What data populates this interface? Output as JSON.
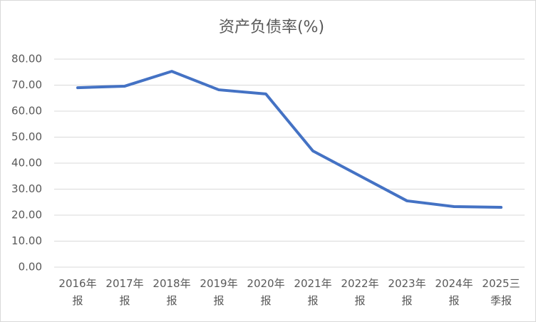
{
  "chart_data": {
    "type": "line",
    "title": "资产负债率(%)",
    "categories": [
      "2016年报",
      "2017年报",
      "2018年报",
      "2019年报",
      "2020年报",
      "2021年报",
      "2022年报",
      "2023年报",
      "2024年报",
      "2025三季报"
    ],
    "series": [
      {
        "name": "资产负债率",
        "color": "#4472c4",
        "values": [
          69.0,
          69.6,
          75.3,
          68.2,
          66.6,
          44.7,
          35.1,
          25.5,
          23.3,
          23.0
        ]
      }
    ],
    "ylim": [
      0,
      80
    ],
    "yticks": [
      {
        "value": 0,
        "label": "0.00"
      },
      {
        "value": 10,
        "label": "10.00"
      },
      {
        "value": 20,
        "label": "20.00"
      },
      {
        "value": 30,
        "label": "30.00"
      },
      {
        "value": 40,
        "label": "40.00"
      },
      {
        "value": 50,
        "label": "50.00"
      },
      {
        "value": 60,
        "label": "60.00"
      },
      {
        "value": 70,
        "label": "70.00"
      },
      {
        "value": 80,
        "label": "80.00"
      }
    ],
    "grid": true
  }
}
